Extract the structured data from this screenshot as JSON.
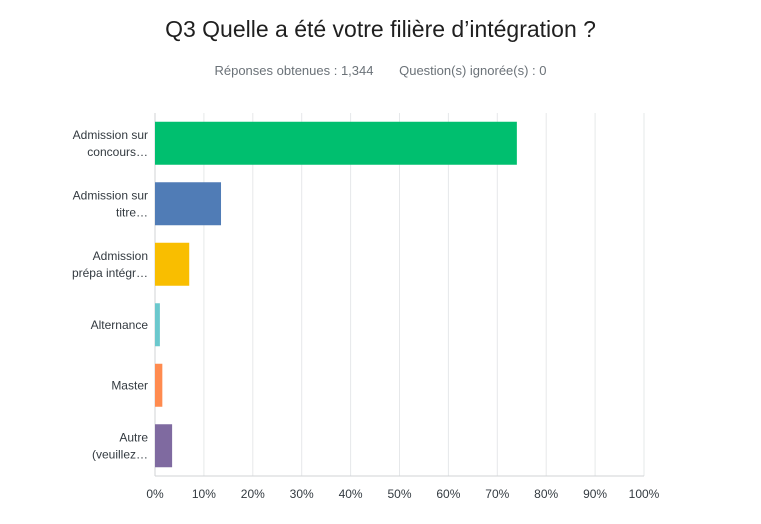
{
  "header": {
    "title": "Q3 Quelle a été votre filière d’intégration ?",
    "responses": "Réponses obtenues : 1,344",
    "skipped": "Question(s) ignorée(s) : 0"
  },
  "chart_data": {
    "type": "bar",
    "orientation": "horizontal",
    "categories": [
      [
        "Admission sur",
        "concours…"
      ],
      [
        "Admission sur",
        "titre…"
      ],
      [
        "Admission",
        "prépa intégr…"
      ],
      [
        "Alternance"
      ],
      [
        "Master"
      ],
      [
        "Autre",
        "(veuillez…"
      ]
    ],
    "values": [
      74,
      13.5,
      7,
      1,
      1.5,
      3.5
    ],
    "colors": [
      "#00bf6f",
      "#507cb6",
      "#f9be00",
      "#6bc8cd",
      "#ff8b4f",
      "#7f6aa0"
    ],
    "x_ticks": [
      "0%",
      "10%",
      "20%",
      "30%",
      "40%",
      "50%",
      "60%",
      "70%",
      "80%",
      "90%",
      "100%"
    ],
    "xlim": [
      0,
      100
    ],
    "grid": true
  }
}
